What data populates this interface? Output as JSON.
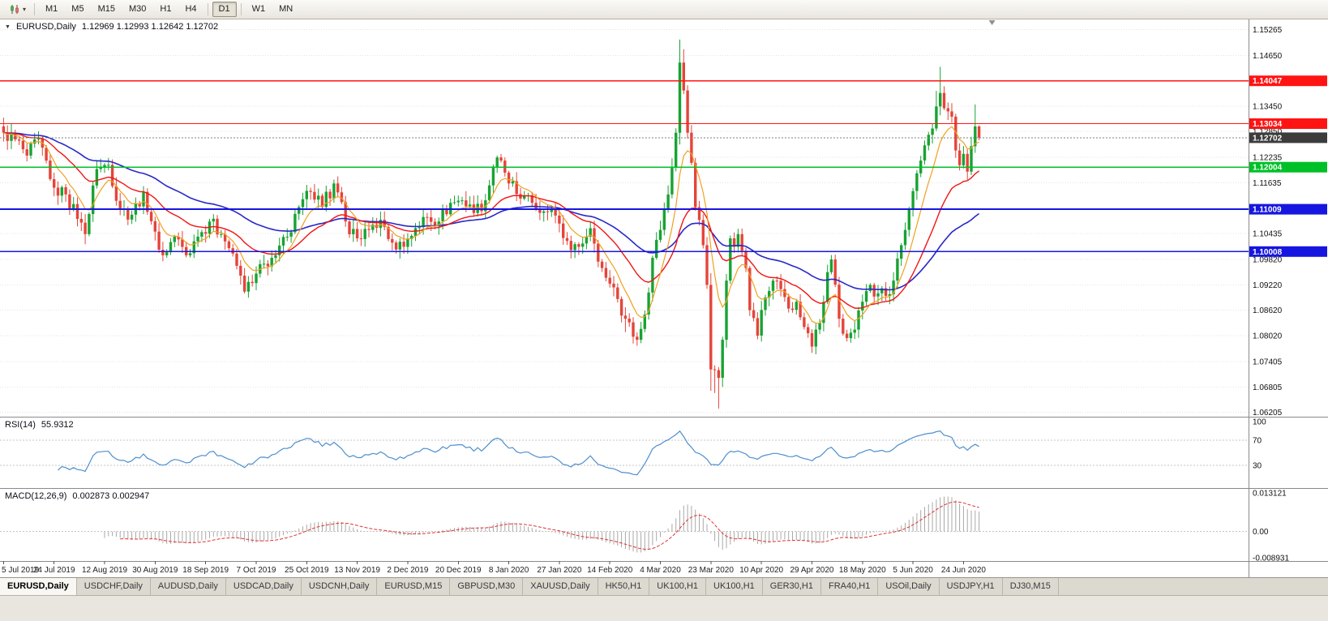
{
  "colors": {
    "up": "#17a332",
    "down": "#e5443a",
    "grid": "#e4e4e4",
    "rsi": "#4d8fce",
    "macd_hist": "#a8a8a8",
    "macd_signal": "#e03232",
    "badge_current": "#3c3c3c"
  },
  "toolbar": {
    "chart_type_icon": "candlestick-chart-icon",
    "dropdown_glyph": "▾",
    "timeframes": [
      "M1",
      "M5",
      "M15",
      "M30",
      "H1",
      "H4",
      "D1",
      "W1",
      "MN"
    ],
    "active_timeframe": "D1"
  },
  "main_pane": {
    "collapse_glyph": "▼",
    "symbol_title": "EURUSD,Daily",
    "ohlc": "1.12969 1.12993 1.12642 1.12702"
  },
  "price_axis": {
    "ticks": [
      "1.15265",
      "1.14650",
      "1.13450",
      "1.12850",
      "1.12235",
      "1.11635",
      "1.10435",
      "1.09820",
      "1.09220",
      "1.08620",
      "1.08020",
      "1.07405",
      "1.06805",
      "1.06205"
    ],
    "badges": [
      {
        "label": "1.14047",
        "price": 1.14047,
        "bg": "#ff1414",
        "role": "resistance-line"
      },
      {
        "label": "1.13034",
        "price": 1.13034,
        "bg": "#ff1414",
        "role": "resistance-line"
      },
      {
        "label": "1.12702",
        "price": 1.12702,
        "bg": "#3c3c3c",
        "role": "current-price"
      },
      {
        "label": "1.12004",
        "price": 1.12004,
        "bg": "#00c028",
        "role": "support-line"
      },
      {
        "label": "1.11009",
        "price": 1.11009,
        "bg": "#1616e0",
        "role": "support-line"
      },
      {
        "label": "1.10008",
        "price": 1.10008,
        "bg": "#1616e0",
        "role": "support-line"
      }
    ]
  },
  "rsi_pane": {
    "label": "RSI(14)",
    "value": "55.9312",
    "axis": [
      {
        "label": "100",
        "value": 100,
        "line": false
      },
      {
        "label": "70",
        "value": 70,
        "line": true
      },
      {
        "label": "30",
        "value": 30,
        "line": true
      }
    ]
  },
  "macd_pane": {
    "label": "MACD(12,26,9)",
    "values": "0.002873 0.002947",
    "max": 0.013121,
    "min": -0.008931,
    "axis": [
      {
        "label": "0.013121",
        "value": 0.013121
      },
      {
        "label": "0.00",
        "value": 0
      },
      {
        "label": "-0.008931",
        "value": -0.008931
      }
    ]
  },
  "time_axis": {
    "candles_per_label": 13,
    "labels": [
      "5 Jul 2019",
      "24 Jul 2019",
      "12 Aug 2019",
      "30 Aug 2019",
      "18 Sep 2019",
      "7 Oct 2019",
      "25 Oct 2019",
      "13 Nov 2019",
      "2 Dec 2019",
      "20 Dec 2019",
      "8 Jan 2020",
      "27 Jan 2020",
      "14 Feb 2020",
      "4 Mar 2020",
      "23 Mar 2020",
      "10 Apr 2020",
      "29 Apr 2020",
      "18 May 2020",
      "5 Jun 2020",
      "24 Jun 2020"
    ]
  },
  "tabs": {
    "active_index": 0,
    "items": [
      "EURUSD,Daily",
      "USDCHF,Daily",
      "AUDUSD,Daily",
      "USDCAD,Daily",
      "USDCNH,Daily",
      "EURUSD,M15",
      "GBPUSD,M30",
      "XAUUSD,Daily",
      "HK50,H1",
      "UK100,H1",
      "UK100,H1",
      "GER30,H1",
      "FRA40,H1",
      "USOil,Daily",
      "USDJPY,H1",
      "DJ30,M15"
    ],
    "window_name": "EURUSD,Daily"
  },
  "chart_data": {
    "type": "candlestick",
    "symbol": "EURUSD",
    "timeframe": "Daily",
    "count": 252,
    "price_range": [
      1.061,
      1.155
    ],
    "current_price": 1.12702,
    "ohlc_readout": {
      "open": 1.12969,
      "high": 1.12993,
      "low": 1.12642,
      "close": 1.12702
    },
    "horizontal_lines": [
      {
        "price": 1.14047,
        "color": "#ff1414",
        "width": 1.4,
        "role": "resistance-line"
      },
      {
        "price": 1.13034,
        "color": "#ff1414",
        "width": 1.4,
        "role": "resistance-line"
      },
      {
        "price": 1.12004,
        "color": "#00c028",
        "width": 1.6,
        "role": "support-line"
      },
      {
        "price": 1.11009,
        "color": "#1616e0",
        "width": 1.8,
        "role": "support-line"
      },
      {
        "price": 1.10008,
        "color": "#1616e0",
        "width": 1.8,
        "role": "support-line"
      }
    ],
    "overlays": [
      {
        "name": "slow",
        "type": "ema",
        "period": 55,
        "color": "#2828c8",
        "width": 1.6
      },
      {
        "name": "mid",
        "type": "ema",
        "period": 24,
        "color": "#f01414",
        "width": 1.4
      },
      {
        "name": "fast",
        "type": "ema",
        "period": 8,
        "color": "#f0a020",
        "width": 1.2
      }
    ],
    "indicators": [
      {
        "name": "RSI",
        "period": 14,
        "current": 55.9312,
        "levels": [
          70,
          30
        ]
      },
      {
        "name": "MACD",
        "fast": 12,
        "slow": 26,
        "signal": 9,
        "current": [
          0.002873,
          0.002947
        ],
        "scale_max": 0.013121,
        "scale_min": -0.008931
      }
    ],
    "close_anchors": [
      [
        0,
        1.1282
      ],
      [
        3,
        1.1266
      ],
      [
        6,
        1.1228
      ],
      [
        9,
        1.1268
      ],
      [
        13,
        1.1152
      ],
      [
        16,
        1.1136
      ],
      [
        19,
        1.1078
      ],
      [
        21,
        1.1042
      ],
      [
        24,
        1.1196
      ],
      [
        27,
        1.1206
      ],
      [
        30,
        1.1102
      ],
      [
        33,
        1.1088
      ],
      [
        36,
        1.1142
      ],
      [
        39,
        1.1048
      ],
      [
        41,
        1.0992
      ],
      [
        44,
        1.1036
      ],
      [
        47,
        1.0992
      ],
      [
        50,
        1.1036
      ],
      [
        53,
        1.1072
      ],
      [
        56,
        1.1042
      ],
      [
        59,
        1.0996
      ],
      [
        62,
        1.0906
      ],
      [
        64,
        1.0926
      ],
      [
        67,
        1.0972
      ],
      [
        70,
        1.0992
      ],
      [
        73,
        1.1036
      ],
      [
        76,
        1.1106
      ],
      [
        79,
        1.1142
      ],
      [
        82,
        1.1106
      ],
      [
        85,
        1.1162
      ],
      [
        88,
        1.1072
      ],
      [
        91,
        1.1032
      ],
      [
        94,
        1.1052
      ],
      [
        97,
        1.1076
      ],
      [
        100,
        1.1022
      ],
      [
        103,
        1.1012
      ],
      [
        106,
        1.1056
      ],
      [
        109,
        1.1082
      ],
      [
        112,
        1.1072
      ],
      [
        115,
        1.1116
      ],
      [
        118,
        1.1122
      ],
      [
        121,
        1.1092
      ],
      [
        124,
        1.1122
      ],
      [
        126,
        1.1202
      ],
      [
        128,
        1.1216
      ],
      [
        130,
        1.1162
      ],
      [
        133,
        1.1126
      ],
      [
        136,
        1.1116
      ],
      [
        139,
        1.1096
      ],
      [
        142,
        1.1086
      ],
      [
        145,
        1.1026
      ],
      [
        148,
        1.1012
      ],
      [
        151,
        1.1056
      ],
      [
        154,
        1.0962
      ],
      [
        157,
        1.0916
      ],
      [
        160,
        1.0842
      ],
      [
        163,
        1.0792
      ],
      [
        165,
        1.0852
      ],
      [
        167,
        1.0986
      ],
      [
        169,
        1.1052
      ],
      [
        171,
        1.1136
      ],
      [
        173,
        1.1282
      ],
      [
        174,
        1.1448
      ],
      [
        175,
        1.1382
      ],
      [
        176,
        1.1282
      ],
      [
        178,
        1.1106
      ],
      [
        180,
        1.1016
      ],
      [
        181,
        1.0922
      ],
      [
        182,
        1.0722
      ],
      [
        184,
        1.0702
      ],
      [
        185,
        1.0792
      ],
      [
        186,
        1.0932
      ],
      [
        187,
        1.1032
      ],
      [
        188,
        1.1012
      ],
      [
        189,
        1.1042
      ],
      [
        191,
        1.0962
      ],
      [
        192,
        1.0862
      ],
      [
        194,
        1.0802
      ],
      [
        196,
        1.0892
      ],
      [
        198,
        1.0932
      ],
      [
        200,
        1.0912
      ],
      [
        202,
        1.0866
      ],
      [
        204,
        1.0882
      ],
      [
        206,
        1.0822
      ],
      [
        208,
        1.0776
      ],
      [
        210,
        1.0832
      ],
      [
        212,
        1.0952
      ],
      [
        213,
        1.0982
      ],
      [
        215,
        1.0842
      ],
      [
        217,
        1.0796
      ],
      [
        219,
        1.0816
      ],
      [
        221,
        1.0882
      ],
      [
        223,
        1.0922
      ],
      [
        225,
        1.0902
      ],
      [
        227,
        1.0896
      ],
      [
        229,
        1.0932
      ],
      [
        231,
        1.1016
      ],
      [
        233,
        1.1102
      ],
      [
        235,
        1.1186
      ],
      [
        237,
        1.1252
      ],
      [
        239,
        1.1292
      ],
      [
        241,
        1.1376
      ],
      [
        242,
        1.134
      ],
      [
        244,
        1.132
      ],
      [
        245,
        1.124
      ],
      [
        246,
        1.1205
      ],
      [
        247,
        1.1232
      ],
      [
        248,
        1.119
      ],
      [
        249,
        1.125
      ],
      [
        250,
        1.1297
      ],
      [
        251,
        1.12702
      ]
    ],
    "wick_boosts": [
      [
        21,
        0,
        0.0015
      ],
      [
        160,
        0,
        0.0012
      ],
      [
        174,
        0.0045,
        0.001
      ],
      [
        175,
        0.002,
        0
      ],
      [
        182,
        0.001,
        0.0045
      ],
      [
        183,
        0,
        0.005
      ],
      [
        184,
        0,
        0.0062
      ],
      [
        240,
        0.002,
        0
      ],
      [
        241,
        0.0046,
        0
      ],
      [
        249,
        0.0015,
        0
      ],
      [
        250,
        0.004,
        0
      ]
    ]
  }
}
